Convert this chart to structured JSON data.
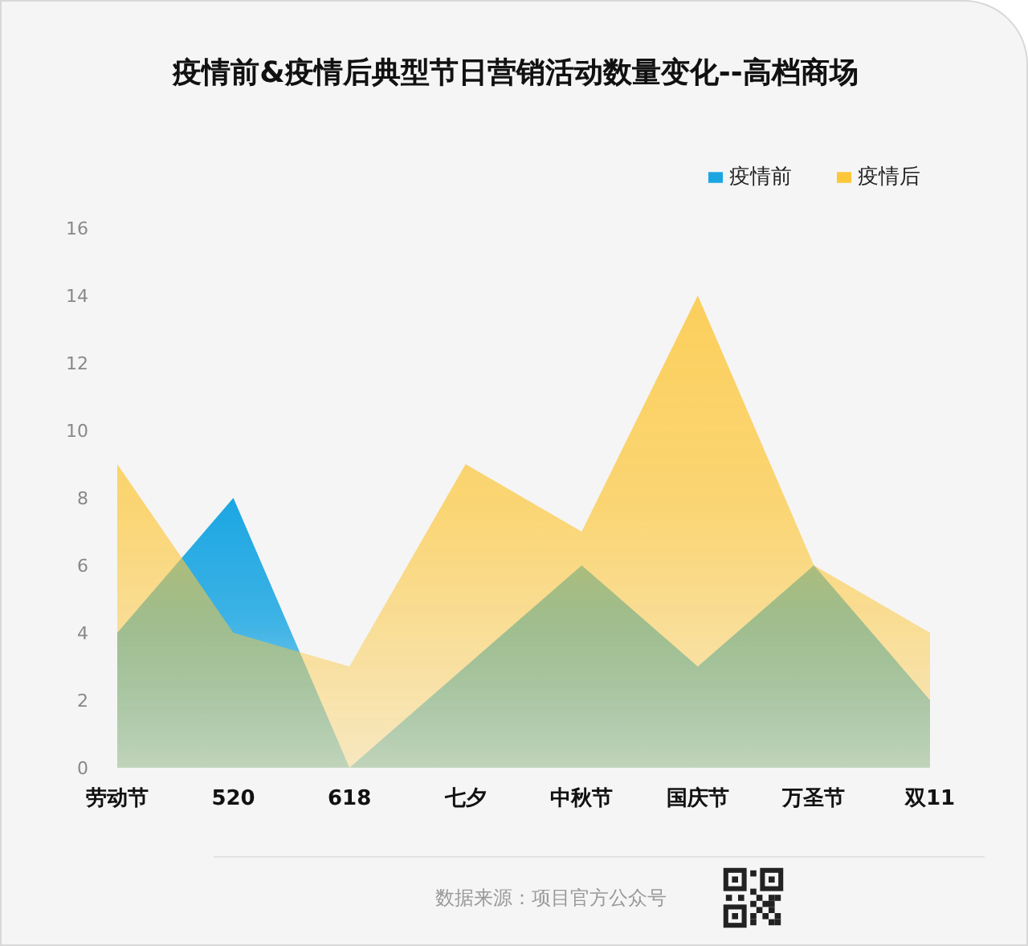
{
  "chart_data": {
    "type": "area",
    "title": "疫情前&疫情后典型节日营销活动数量变化--高档商场",
    "categories": [
      "劳动节",
      "520",
      "618",
      "七夕",
      "中秋节",
      "国庆节",
      "万圣节",
      "双11"
    ],
    "series": [
      {
        "name": "疫情前",
        "color": "#1ba6e2",
        "values": [
          4,
          8,
          0,
          3,
          6,
          3,
          6,
          2
        ]
      },
      {
        "name": "疫情后",
        "color": "#fdc73a",
        "values": [
          9,
          4,
          3,
          9,
          7,
          14,
          6,
          4
        ]
      }
    ],
    "ylim": [
      0,
      16
    ],
    "yticks": [
      0,
      2,
      4,
      6,
      8,
      10,
      12,
      14,
      16
    ],
    "legend": "top right",
    "annotations": [
      "数据来源：项目官方公众号"
    ]
  }
}
